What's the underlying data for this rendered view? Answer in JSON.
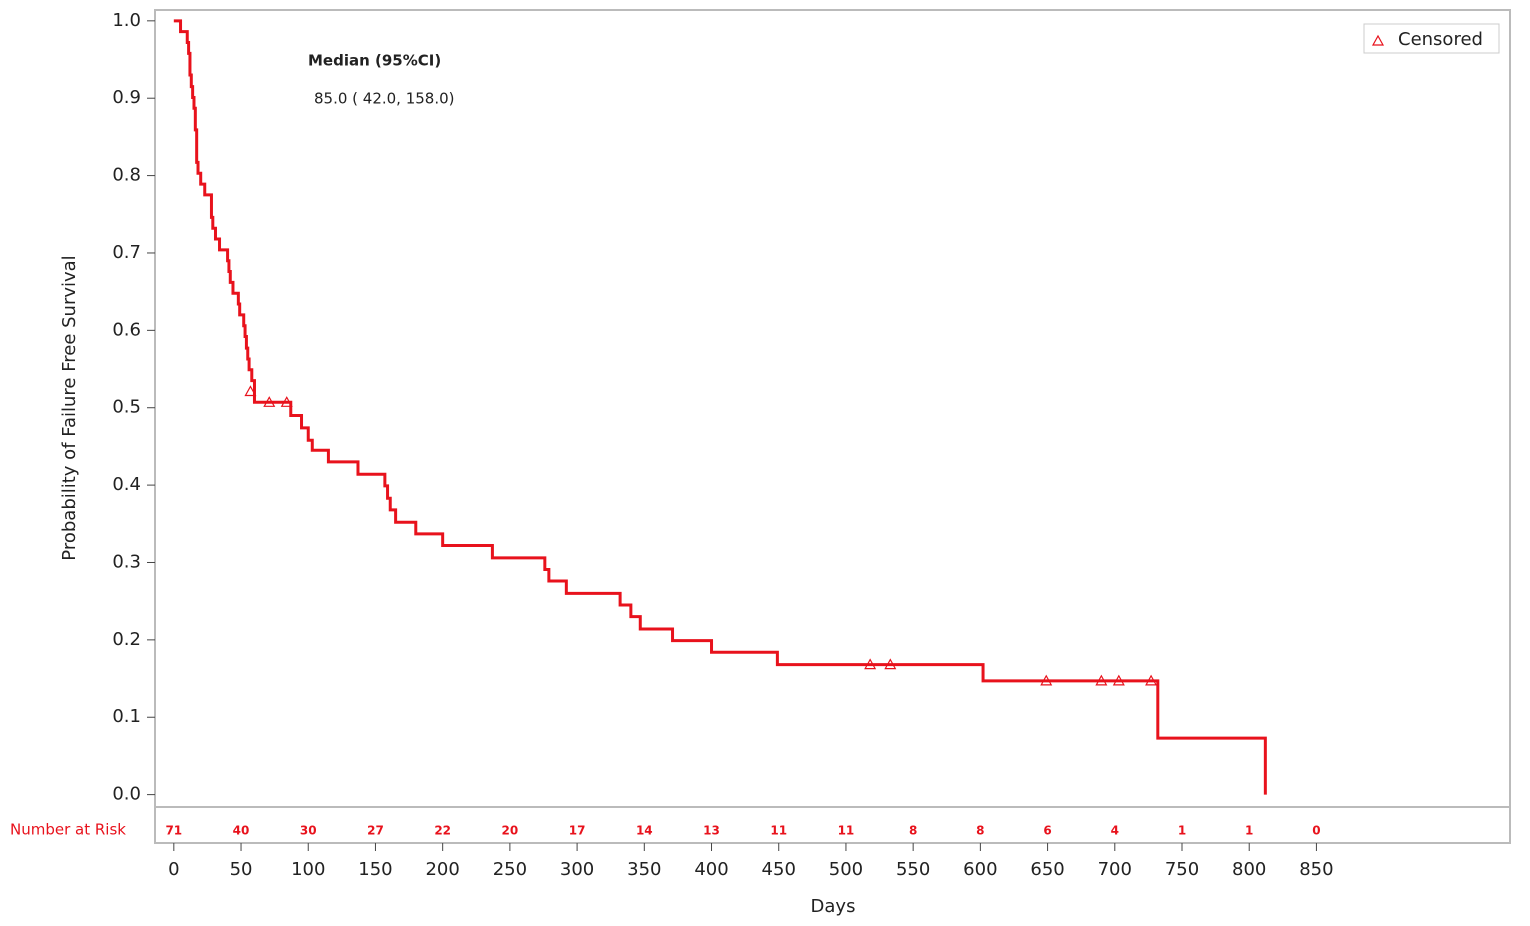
{
  "chart_data": {
    "type": "step",
    "x_label": "Days",
    "y_label": "Probability of Failure Free Survival",
    "color": "#e8121c",
    "x": [
      0,
      5,
      10,
      11,
      12,
      13,
      14,
      15,
      16,
      17,
      18,
      20,
      23,
      28,
      29,
      31,
      34,
      40,
      41,
      42,
      44,
      48,
      49,
      52,
      53,
      54,
      55,
      56,
      58,
      60,
      87,
      95,
      100,
      103,
      115,
      137,
      157,
      159,
      161,
      165,
      180,
      200,
      237,
      276,
      279,
      292,
      332,
      340,
      347,
      371,
      400,
      449,
      602,
      732,
      812
    ],
    "values": [
      1.0,
      0.986,
      0.972,
      0.958,
      0.93,
      0.915,
      0.901,
      0.887,
      0.859,
      0.817,
      0.803,
      0.789,
      0.775,
      0.746,
      0.732,
      0.718,
      0.704,
      0.69,
      0.676,
      0.662,
      0.648,
      0.634,
      0.62,
      0.606,
      0.592,
      0.577,
      0.563,
      0.549,
      0.535,
      0.507,
      0.49,
      0.474,
      0.458,
      0.445,
      0.43,
      0.414,
      0.399,
      0.383,
      0.368,
      0.352,
      0.337,
      0.322,
      0.306,
      0.291,
      0.276,
      0.26,
      0.245,
      0.23,
      0.214,
      0.199,
      0.184,
      0.168,
      0.147,
      0.073,
      0.0
    ],
    "censored": {
      "name": "Censored",
      "x": [
        57,
        71,
        84,
        518,
        533,
        649,
        690,
        703,
        727
      ],
      "values": [
        0.521,
        0.507,
        0.507,
        0.168,
        0.168,
        0.147,
        0.147,
        0.147,
        0.147
      ]
    },
    "risk_table": {
      "label": "Number at Risk",
      "values": [
        71,
        40,
        30,
        27,
        22,
        20,
        17,
        14,
        13,
        11,
        11,
        8,
        8,
        6,
        4,
        1,
        1,
        0
      ]
    },
    "annotations": [
      "Median (95%CI)",
      "85.0 ( 42.0, 158.0)"
    ],
    "xlim": [
      -14,
      994
    ],
    "ylim": [
      -0.016,
      1.014
    ],
    "xticks": [
      0,
      50,
      100,
      150,
      200,
      250,
      300,
      350,
      400,
      450,
      500,
      550,
      600,
      650,
      700,
      750,
      800,
      850
    ],
    "yticks": [
      {
        "value": 0,
        "label": "0.0"
      },
      0.1,
      0.2,
      0.3,
      0.4,
      0.5,
      0.6,
      0.7,
      0.8,
      0.9,
      {
        "value": 1,
        "label": "1.0"
      }
    ],
    "legend": "top-right"
  }
}
